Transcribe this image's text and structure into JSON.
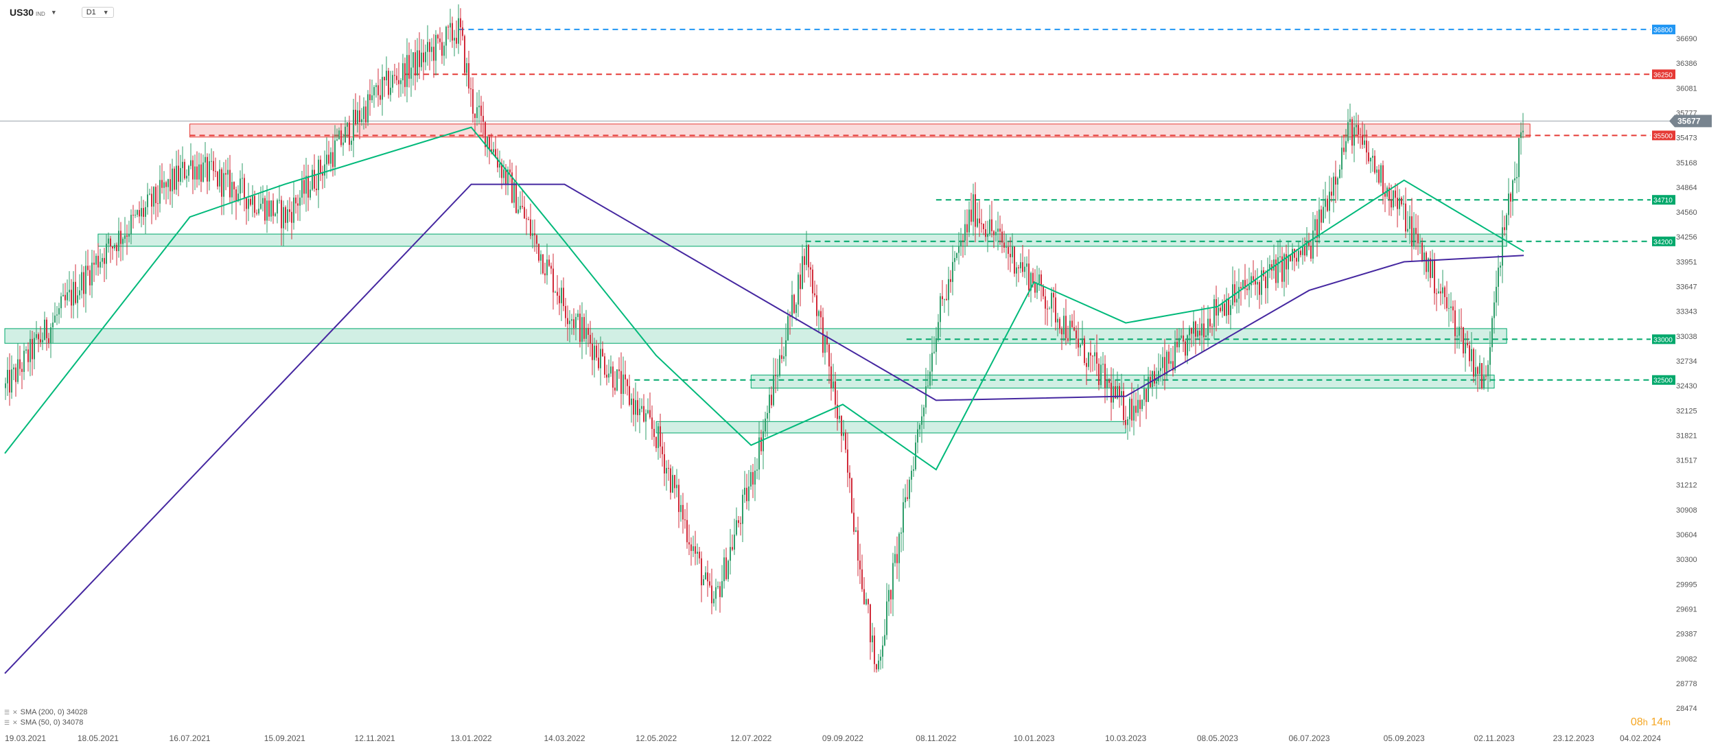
{
  "header": {
    "symbol": "US30",
    "symbol_sub": "IND",
    "timeframe": "D1"
  },
  "timer": {
    "h_value": "08",
    "h_unit": "h",
    "m_value": "14",
    "m_unit": "m"
  },
  "colors": {
    "up_candle": "#2e9e6a",
    "down_candle": "#d12b3a",
    "sma200": "#4527a0",
    "sma50": "#00b97a",
    "support": "#00a86b",
    "resistance": "#e53935",
    "high_line": "#2196f3",
    "price_tag": "#78848f"
  },
  "legend": [
    {
      "label": "SMA (200, 0) 34028"
    },
    {
      "label": "SMA (50, 0) 34078"
    }
  ],
  "chart_data": {
    "type": "candlestick",
    "instrument": "US30",
    "timeframe": "D1",
    "y_range": [
      28474,
      36900
    ],
    "y_ticks": [
      36690,
      36386,
      36081,
      35777,
      35473,
      35168,
      34864,
      34560,
      34256,
      33951,
      33647,
      33343,
      33038,
      32734,
      32430,
      32125,
      31821,
      31517,
      31212,
      30908,
      30604,
      30300,
      29995,
      29691,
      29387,
      29082,
      28778,
      28474
    ],
    "x_ticks": [
      "19.03.2021",
      "18.05.2021",
      "16.07.2021",
      "15.09.2021",
      "12.11.2021",
      "13.01.2022",
      "14.03.2022",
      "12.05.2022",
      "12.07.2022",
      "09.09.2022",
      "08.11.2022",
      "10.01.2023",
      "10.03.2023",
      "08.05.2023",
      "06.07.2023",
      "05.09.2023",
      "02.11.2023",
      "23.12.2023",
      "04.02.2024"
    ],
    "current_price": 35677,
    "price_path": [
      [
        "19.03.2021",
        32400
      ],
      [
        "18.05.2021",
        34000
      ],
      [
        "16.07.2021",
        35150
      ],
      [
        "15.09.2021",
        34500
      ],
      [
        "12.11.2021",
        36000
      ],
      [
        "05.01.2022",
        36800
      ],
      [
        "13.01.2022",
        35900
      ],
      [
        "14.03.2022",
        33400
      ],
      [
        "12.05.2022",
        31800
      ],
      [
        "17.06.2022",
        29700
      ],
      [
        "12.07.2022",
        31300
      ],
      [
        "16.08.2022",
        34100
      ],
      [
        "09.09.2022",
        31700
      ],
      [
        "30.09.2022",
        28900
      ],
      [
        "08.11.2022",
        33200
      ],
      [
        "01.12.2022",
        34600
      ],
      [
        "10.01.2023",
        33700
      ],
      [
        "10.03.2023",
        32100
      ],
      [
        "08.05.2023",
        33400
      ],
      [
        "06.07.2023",
        34100
      ],
      [
        "01.08.2023",
        35600
      ],
      [
        "05.09.2023",
        34500
      ],
      [
        "27.10.2023",
        32420
      ],
      [
        "02.11.2023",
        33700
      ],
      [
        "21.11.2023",
        35677
      ]
    ],
    "series": [
      {
        "name": "SMA (200, 0)",
        "last_value": 34028,
        "path": [
          [
            "19.03.2021",
            28900
          ],
          [
            "13.01.2022",
            34900
          ],
          [
            "14.03.2022",
            34900
          ],
          [
            "08.11.2022",
            32250
          ],
          [
            "10.03.2023",
            32300
          ],
          [
            "06.07.2023",
            33600
          ],
          [
            "05.09.2023",
            33950
          ],
          [
            "21.11.2023",
            34028
          ]
        ]
      },
      {
        "name": "SMA (50, 0)",
        "last_value": 34078,
        "path": [
          [
            "19.03.2021",
            31600
          ],
          [
            "16.07.2021",
            34500
          ],
          [
            "15.09.2021",
            34900
          ],
          [
            "13.01.2022",
            35600
          ],
          [
            "14.03.2022",
            34200
          ],
          [
            "12.05.2022",
            32800
          ],
          [
            "12.07.2022",
            31700
          ],
          [
            "09.09.2022",
            32200
          ],
          [
            "08.11.2022",
            31400
          ],
          [
            "10.01.2023",
            33700
          ],
          [
            "10.03.2023",
            33200
          ],
          [
            "08.05.2023",
            33400
          ],
          [
            "06.07.2023",
            34200
          ],
          [
            "05.09.2023",
            34950
          ],
          [
            "21.11.2023",
            34078
          ]
        ]
      }
    ],
    "levels": [
      {
        "value": 36800,
        "label": "36800",
        "role": "high"
      },
      {
        "value": 36250,
        "label": "36250",
        "role": "resistance"
      },
      {
        "value": 35500,
        "label": "35500",
        "role": "resistance"
      },
      {
        "value": 34710,
        "label": "34710",
        "role": "support"
      },
      {
        "value": 34200,
        "label": "34200",
        "role": "support"
      },
      {
        "value": 33000,
        "label": "33000",
        "role": "support"
      },
      {
        "value": 32500,
        "label": "32500",
        "role": "support"
      }
    ],
    "zones": [
      {
        "from": "16.07.2021",
        "to": "25.11.2023",
        "low": 35480,
        "high": 35640,
        "role": "resistance"
      },
      {
        "from": "18.05.2021",
        "to": "10.11.2023",
        "low": 34140,
        "high": 34290,
        "role": "support"
      },
      {
        "from": "19.03.2021",
        "to": "10.11.2023",
        "low": 32950,
        "high": 33130,
        "role": "support"
      },
      {
        "from": "12.07.2022",
        "to": "02.11.2023",
        "low": 32400,
        "high": 32560,
        "role": "support"
      },
      {
        "from": "12.05.2022",
        "to": "10.03.2023",
        "low": 31850,
        "high": 31990,
        "role": "support"
      }
    ],
    "grid": false,
    "legend_position": "bottom-left"
  }
}
